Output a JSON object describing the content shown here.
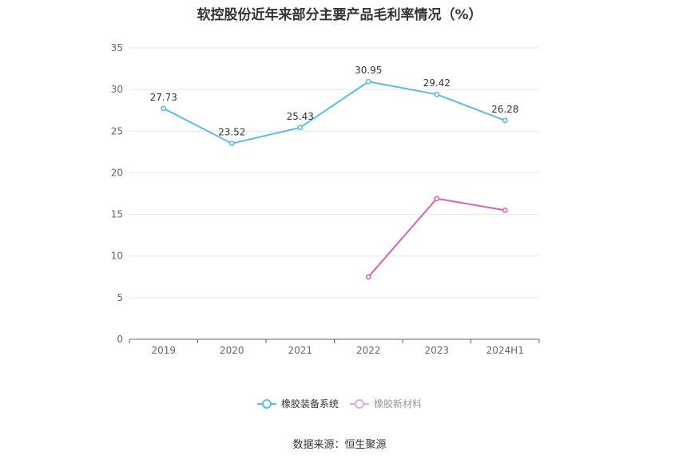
{
  "chart_data": {
    "type": "line",
    "title": "软控股份近年来部分主要产品毛利率情况（%）",
    "categories": [
      "2019",
      "2020",
      "2021",
      "2022",
      "2023",
      "2024H1"
    ],
    "ylim": [
      0,
      35
    ],
    "yticks": [
      0,
      5,
      10,
      15,
      20,
      25,
      30,
      35
    ],
    "grid": true,
    "legend_position": "bottom",
    "series": [
      {
        "name": "橡胶装备系统",
        "color": "#5bbce8",
        "values": [
          27.73,
          23.52,
          25.43,
          30.95,
          29.42,
          26.28
        ],
        "labels": [
          "27.73",
          "23.52",
          "25.43",
          "30.95",
          "29.42",
          "26.28"
        ]
      },
      {
        "name": "橡胶新材料",
        "color": "#d465b0",
        "values": [
          null,
          null,
          null,
          7.5,
          16.9,
          15.5
        ]
      }
    ]
  },
  "source": "数据来源：恒生聚源"
}
